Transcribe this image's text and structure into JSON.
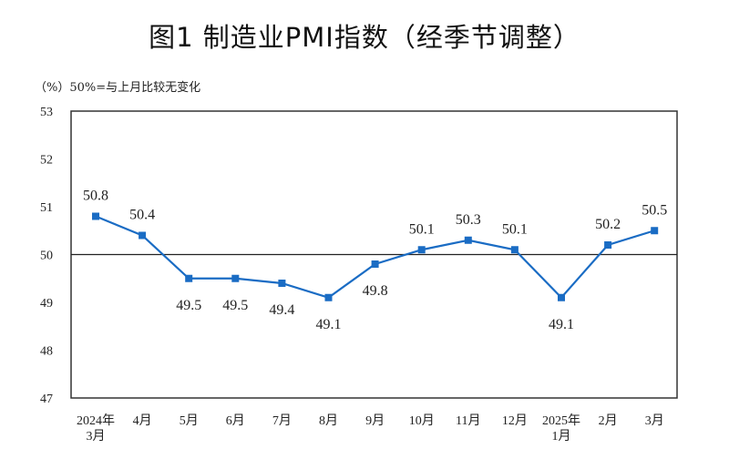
{
  "chart_data": {
    "type": "line",
    "title": "图1 制造业PMI指数（经季节调整）",
    "ylabel": "（%）",
    "annotation": "50%=与上月比较无变化",
    "categories": [
      [
        "2024年",
        "3月"
      ],
      [
        "4月"
      ],
      [
        "5月"
      ],
      [
        "6月"
      ],
      [
        "7月"
      ],
      [
        "8月"
      ],
      [
        "9月"
      ],
      [
        "10月"
      ],
      [
        "11月"
      ],
      [
        "12月"
      ],
      [
        "2025年",
        "1月"
      ],
      [
        "2月"
      ],
      [
        "3月"
      ]
    ],
    "values": [
      50.8,
      50.4,
      49.5,
      49.5,
      49.4,
      49.1,
      49.8,
      50.1,
      50.3,
      50.1,
      49.1,
      50.2,
      50.5
    ],
    "ylim": [
      47,
      53
    ],
    "yticks": [
      47,
      48,
      49,
      50,
      51,
      52,
      53
    ],
    "reference_line": 50,
    "grid": false,
    "marker": "square",
    "colors": {
      "line": "#1a6cc4",
      "axis": "#333333"
    }
  }
}
